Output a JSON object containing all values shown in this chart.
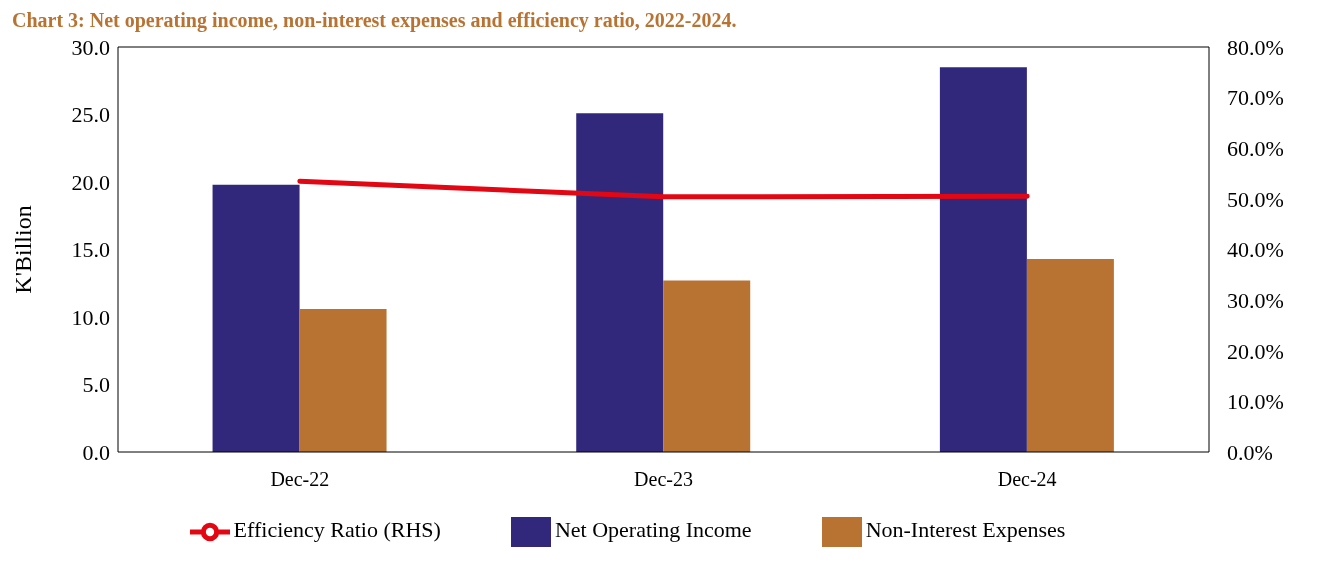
{
  "chart_data": {
    "type": "bar",
    "title": "Chart 3: Net operating income, non-interest expenses and efficiency ratio, 2022-2024.",
    "ylabel": "K'Billion",
    "categories": [
      "Dec-22",
      "Dec-23",
      "Dec-24"
    ],
    "series": [
      {
        "name": "Net Operating Income",
        "color": "#31287c",
        "values": [
          19.8,
          25.1,
          28.5
        ]
      },
      {
        "name": "Non-Interest Expenses",
        "color": "#b87333",
        "values": [
          10.6,
          12.7,
          14.3
        ]
      },
      {
        "name": "Efficiency Ratio (RHS)",
        "type": "line",
        "axis": "y2",
        "color": "#e30613",
        "values": [
          53.5,
          50.4,
          50.5
        ]
      }
    ],
    "ylim": [
      0,
      30
    ],
    "yticks": [
      {
        "value": 0,
        "label": "0.0"
      },
      {
        "value": 5,
        "label": "5.0"
      },
      {
        "value": 10,
        "label": "10.0"
      },
      {
        "value": 15,
        "label": "15.0"
      },
      {
        "value": 20,
        "label": "20.0"
      },
      {
        "value": 25,
        "label": "25.0"
      },
      {
        "value": 30,
        "label": "30.0"
      }
    ],
    "y2lim": [
      0,
      80
    ],
    "y2ticks": [
      {
        "value": 0,
        "label": "0.0%"
      },
      {
        "value": 10,
        "label": "10.0%"
      },
      {
        "value": 20,
        "label": "20.0%"
      },
      {
        "value": 30,
        "label": "30.0%"
      },
      {
        "value": 40,
        "label": "40.0%"
      },
      {
        "value": 50,
        "label": "50.0%"
      },
      {
        "value": 60,
        "label": "60.0%"
      },
      {
        "value": 70,
        "label": "70.0%"
      },
      {
        "value": 80,
        "label": "80.0%"
      }
    ],
    "grid": false,
    "legend": "bottom",
    "marker": "none",
    "line_style": "solid"
  }
}
